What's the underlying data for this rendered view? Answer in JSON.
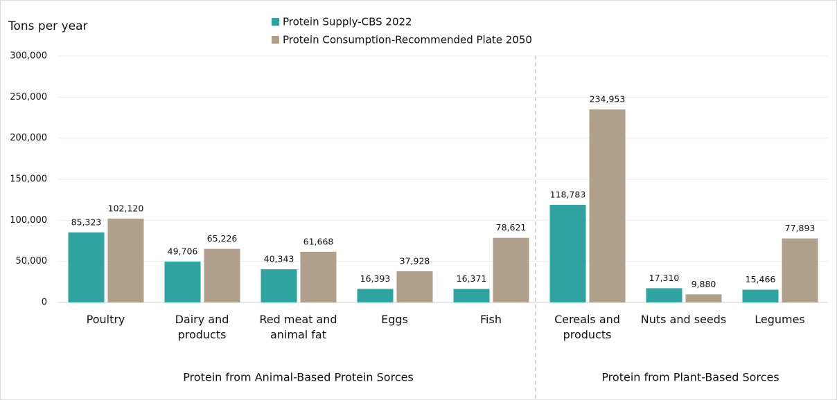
{
  "chart_data": {
    "type": "bar",
    "y_label": "Tons per year",
    "categories": [
      "Poultry",
      "Dairy and products",
      "Red meat and animal fat",
      "Eggs",
      "Fish",
      "Cereals and products",
      "Nuts and seeds",
      "Legumes"
    ],
    "series": [
      {
        "name": "Protein Supply-CBS 2022",
        "color": "#2ea39f",
        "values": [
          85323,
          49706,
          40343,
          16393,
          16371,
          118783,
          17310,
          15466
        ],
        "value_labels": [
          "85,323",
          "49,706",
          "40,343",
          "16,393",
          "16,371",
          "118,783",
          "17,310",
          "15,466"
        ]
      },
      {
        "name": "Protein Consumption-Recommended Plate 2050",
        "color": "#b09f8b",
        "values": [
          102120,
          65226,
          61668,
          37928,
          78621,
          234953,
          9880,
          77893
        ],
        "value_labels": [
          "102,120",
          "65,226",
          "61,668",
          "37,928",
          "78,621",
          "234,953",
          "9,880",
          "77,893"
        ]
      }
    ],
    "groups": [
      {
        "label": "Protein from Animal-Based Protein Sorces"
      },
      {
        "label": "Protein from Plant-Based Sorces"
      }
    ],
    "ylim": [
      0,
      300000
    ],
    "yticks": [
      0,
      {
        "value": 50000,
        "label": "50,000"
      },
      {
        "value": 100000,
        "label": "100,000"
      },
      {
        "value": 150000,
        "label": "150,000"
      },
      {
        "value": 200000,
        "label": "200,000"
      },
      {
        "value": 250000,
        "label": "250,000"
      },
      {
        "value": 300000,
        "label": "300,000"
      }
    ],
    "grid": true
  }
}
